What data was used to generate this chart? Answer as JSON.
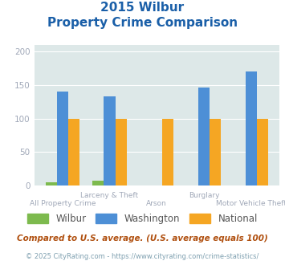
{
  "title_line1": "2015 Wilbur",
  "title_line2": "Property Crime Comparison",
  "categories_top": [
    "",
    "Larceny & Theft",
    "",
    "Burglary",
    ""
  ],
  "categories_bottom": [
    "All Property Crime",
    "",
    "Arson",
    "",
    "Motor Vehicle Theft"
  ],
  "wilbur": [
    5,
    7,
    0,
    0,
    0
  ],
  "washington": [
    140,
    133,
    0,
    147,
    170
  ],
  "national": [
    100,
    100,
    100,
    100,
    100
  ],
  "wilbur_color": "#7dba4e",
  "washington_color": "#4d8fd6",
  "national_color": "#f5a623",
  "bg_color": "#dde8e8",
  "ylim": [
    0,
    210
  ],
  "yticks": [
    0,
    50,
    100,
    150,
    200
  ],
  "footnote": "Compared to U.S. average. (U.S. average equals 100)",
  "copyright": "© 2025 CityRating.com - https://www.cityrating.com/crime-statistics/",
  "title_color": "#1a5fa8",
  "footnote_color": "#b05010",
  "copyright_color": "#7fa0b0",
  "tick_color": "#a0a8b8",
  "legend_label_color": "#555555"
}
